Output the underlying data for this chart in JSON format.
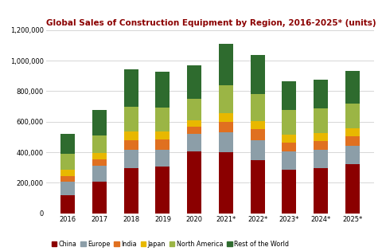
{
  "title": "Global Sales of Construction Equipment by Region, 2016-2025* (units)",
  "years": [
    "2016",
    "2017",
    "2018",
    "2019",
    "2020",
    "2021*",
    "2022*",
    "2023*",
    "2024*",
    "2025*"
  ],
  "regions": [
    "China",
    "Europe",
    "India",
    "Japan",
    "North America",
    "Rest of the World"
  ],
  "colors": [
    "#8B0000",
    "#8C9EA8",
    "#E07020",
    "#E8B800",
    "#9BB545",
    "#2E6B2E"
  ],
  "data": {
    "China": [
      120000,
      210000,
      295000,
      305000,
      405000,
      400000,
      350000,
      285000,
      295000,
      320000
    ],
    "Europe": [
      90000,
      100000,
      120000,
      110000,
      115000,
      130000,
      130000,
      120000,
      120000,
      120000
    ],
    "India": [
      35000,
      45000,
      65000,
      70000,
      45000,
      70000,
      70000,
      60000,
      60000,
      65000
    ],
    "Japan": [
      40000,
      40000,
      55000,
      50000,
      45000,
      55000,
      55000,
      50000,
      50000,
      50000
    ],
    "North America": [
      105000,
      115000,
      165000,
      160000,
      140000,
      185000,
      175000,
      160000,
      160000,
      165000
    ],
    "Rest of the World": [
      130000,
      165000,
      245000,
      230000,
      220000,
      270000,
      255000,
      190000,
      190000,
      215000
    ]
  },
  "ylim": [
    0,
    1200000
  ],
  "yticks": [
    0,
    200000,
    400000,
    600000,
    800000,
    1000000,
    1200000
  ],
  "background_color": "#ffffff",
  "grid_color": "#d0d0d0",
  "title_color": "#8B0000",
  "title_fontsize": 7.5,
  "tick_fontsize": 6,
  "legend_fontsize": 5.8,
  "bar_width": 0.45
}
